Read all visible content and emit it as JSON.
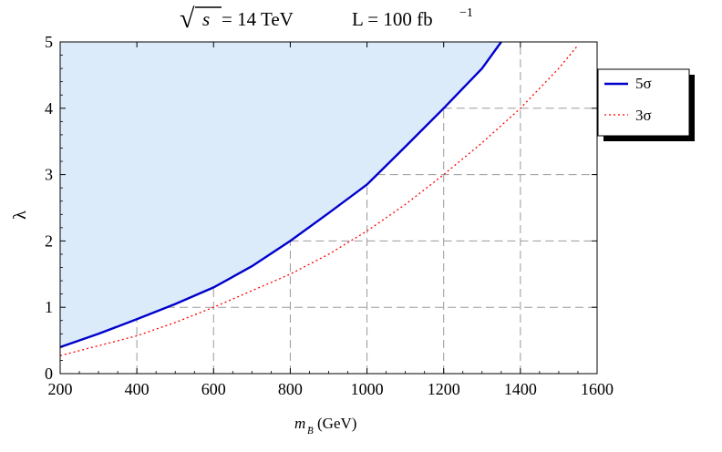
{
  "chart_data": {
    "type": "line",
    "title": {
      "sqrt_symbol": "√",
      "sqrt_arg": "s",
      "energy": " = 14 TeV",
      "lumi_prefix": "L = 100 fb",
      "lumi_exp": "−1"
    },
    "xlabel": {
      "main": "m",
      "sub": "B",
      "accent": "~",
      "unit": "(GeV)"
    },
    "ylabel": "λ",
    "xlim": [
      200,
      1600
    ],
    "ylim": [
      0,
      5
    ],
    "xticks": [
      200,
      400,
      600,
      800,
      1000,
      1200,
      1400,
      1600
    ],
    "yticks": [
      0,
      1,
      2,
      3,
      4,
      5
    ],
    "grid": "dashed, only under the curves",
    "legend_position": "right",
    "series": [
      {
        "name": "5σ",
        "style": "solid",
        "color": "#0000cc",
        "fill_above": "#dcebfa",
        "x": [
          200,
          300,
          400,
          500,
          600,
          700,
          800,
          900,
          1000,
          1100,
          1200,
          1300,
          1350
        ],
        "y": [
          0.4,
          0.6,
          0.82,
          1.05,
          1.3,
          1.62,
          2.0,
          2.42,
          2.85,
          3.42,
          4.0,
          4.6,
          5.0
        ]
      },
      {
        "name": "3σ",
        "style": "dotted",
        "color": "#ff0000",
        "x": [
          200,
          300,
          400,
          500,
          600,
          700,
          800,
          900,
          1000,
          1100,
          1200,
          1300,
          1400,
          1500,
          1550
        ],
        "y": [
          0.27,
          0.42,
          0.57,
          0.77,
          1.0,
          1.25,
          1.5,
          1.8,
          2.15,
          2.55,
          3.0,
          3.48,
          4.0,
          4.6,
          4.95
        ]
      }
    ]
  }
}
